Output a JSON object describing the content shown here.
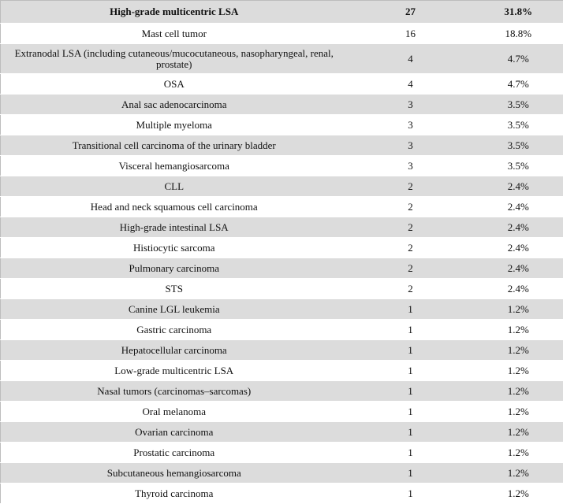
{
  "table": {
    "rows": [
      [
        "High-grade multicentric LSA",
        27,
        "31.8%"
      ],
      [
        "Mast cell tumor",
        16,
        "18.8%"
      ],
      [
        "Extranodal LSA (including cutaneous/mucocutaneous, nasopharyngeal, renal, prostate)",
        4,
        "4.7%"
      ],
      [
        "OSA",
        4,
        "4.7%"
      ],
      [
        "Anal sac adenocarcinoma",
        3,
        "3.5%"
      ],
      [
        "Multiple myeloma",
        3,
        "3.5%"
      ],
      [
        "Transitional cell carcinoma of the urinary bladder",
        3,
        "3.5%"
      ],
      [
        "Visceral hemangiosarcoma",
        3,
        "3.5%"
      ],
      [
        "CLL",
        2,
        "2.4%"
      ],
      [
        "Head and neck squamous cell carcinoma",
        2,
        "2.4%"
      ],
      [
        "High-grade intestinal LSA",
        2,
        "2.4%"
      ],
      [
        "Histiocytic sarcoma",
        2,
        "2.4%"
      ],
      [
        "Pulmonary carcinoma",
        2,
        "2.4%"
      ],
      [
        "STS",
        2,
        "2.4%"
      ],
      [
        "Canine LGL leukemia",
        1,
        "1.2%"
      ],
      [
        "Gastric carcinoma",
        1,
        "1.2%"
      ],
      [
        "Hepatocellular carcinoma",
        1,
        "1.2%"
      ],
      [
        "Low-grade multicentric LSA",
        1,
        "1.2%"
      ],
      [
        "Nasal tumors (carcinomas–sarcomas)",
        1,
        "1.2%"
      ],
      [
        "Oral melanoma",
        1,
        "1.2%"
      ],
      [
        "Ovarian carcinoma",
        1,
        "1.2%"
      ],
      [
        "Prostatic carcinoma",
        1,
        "1.2%"
      ],
      [
        "Subcutaneous hemangiosarcoma",
        1,
        "1.2%"
      ],
      [
        "Thyroid carcinoma",
        1,
        "1.2%"
      ]
    ]
  }
}
